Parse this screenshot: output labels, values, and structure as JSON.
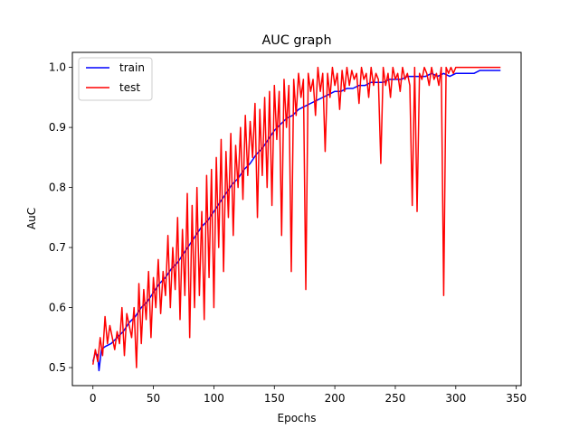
{
  "chart_data": {
    "type": "line",
    "title": "AUC graph",
    "xlabel": "Epochs",
    "ylabel": "AuC",
    "xlim": [
      -17,
      354
    ],
    "ylim": [
      0.47,
      1.025
    ],
    "xticks": [
      0,
      50,
      100,
      150,
      200,
      250,
      300,
      350
    ],
    "yticks": [
      0.5,
      0.6,
      0.7,
      0.8,
      0.9,
      1.0
    ],
    "xtick_labels": [
      "0",
      "50",
      "100",
      "150",
      "200",
      "250",
      "300",
      "350"
    ],
    "ytick_labels": [
      "0.5",
      "0.6",
      "0.7",
      "0.8",
      "0.9",
      "1.0"
    ],
    "grid": false,
    "legend_position": "top-left",
    "series": [
      {
        "name": "train",
        "color": "#0000ff",
        "x": [
          0,
          2,
          4,
          5,
          7,
          10,
          15,
          20,
          25,
          30,
          35,
          40,
          45,
          50,
          55,
          60,
          65,
          70,
          75,
          80,
          85,
          90,
          95,
          100,
          105,
          110,
          115,
          120,
          125,
          130,
          135,
          140,
          145,
          150,
          155,
          160,
          165,
          170,
          175,
          180,
          185,
          190,
          195,
          200,
          205,
          210,
          215,
          220,
          225,
          230,
          235,
          240,
          245,
          250,
          255,
          260,
          265,
          270,
          275,
          280,
          285,
          290,
          295,
          300,
          305,
          310,
          315,
          320,
          325,
          330,
          335,
          337
        ],
        "values": [
          0.51,
          0.525,
          0.52,
          0.495,
          0.53,
          0.535,
          0.54,
          0.55,
          0.56,
          0.575,
          0.585,
          0.6,
          0.61,
          0.625,
          0.64,
          0.65,
          0.665,
          0.675,
          0.69,
          0.705,
          0.72,
          0.735,
          0.745,
          0.76,
          0.775,
          0.79,
          0.805,
          0.815,
          0.83,
          0.84,
          0.855,
          0.865,
          0.88,
          0.895,
          0.905,
          0.915,
          0.92,
          0.93,
          0.935,
          0.94,
          0.945,
          0.95,
          0.955,
          0.96,
          0.96,
          0.965,
          0.965,
          0.97,
          0.97,
          0.975,
          0.975,
          0.975,
          0.98,
          0.98,
          0.98,
          0.985,
          0.985,
          0.985,
          0.985,
          0.99,
          0.985,
          0.99,
          0.985,
          0.99,
          0.99,
          0.99,
          0.99,
          0.995,
          0.995,
          0.995,
          0.995,
          0.995
        ]
      },
      {
        "name": "test",
        "color": "#ff0000",
        "x": [
          0,
          2,
          4,
          6,
          8,
          10,
          12,
          14,
          16,
          18,
          20,
          22,
          24,
          26,
          28,
          30,
          32,
          34,
          36,
          38,
          40,
          42,
          44,
          46,
          48,
          50,
          52,
          54,
          56,
          58,
          60,
          62,
          64,
          66,
          68,
          70,
          72,
          74,
          76,
          78,
          80,
          82,
          84,
          86,
          88,
          90,
          92,
          94,
          96,
          98,
          100,
          102,
          104,
          106,
          108,
          110,
          112,
          114,
          116,
          118,
          120,
          122,
          124,
          126,
          128,
          130,
          132,
          134,
          136,
          138,
          140,
          142,
          144,
          146,
          148,
          150,
          152,
          154,
          156,
          158,
          160,
          162,
          164,
          166,
          168,
          170,
          172,
          174,
          176,
          178,
          180,
          182,
          184,
          186,
          188,
          190,
          192,
          194,
          196,
          198,
          200,
          202,
          204,
          206,
          208,
          210,
          212,
          214,
          216,
          218,
          220,
          222,
          224,
          226,
          228,
          230,
          232,
          234,
          236,
          238,
          240,
          242,
          244,
          246,
          248,
          250,
          252,
          254,
          256,
          258,
          260,
          262,
          264,
          266,
          268,
          270,
          272,
          274,
          276,
          278,
          280,
          282,
          284,
          286,
          288,
          290,
          292,
          294,
          296,
          298,
          300,
          302,
          304,
          306,
          308,
          310,
          315,
          320,
          325,
          330,
          335,
          337
        ],
        "values": [
          0.505,
          0.53,
          0.51,
          0.55,
          0.52,
          0.585,
          0.54,
          0.57,
          0.55,
          0.53,
          0.56,
          0.54,
          0.6,
          0.52,
          0.59,
          0.57,
          0.55,
          0.6,
          0.5,
          0.64,
          0.54,
          0.63,
          0.58,
          0.66,
          0.55,
          0.65,
          0.6,
          0.68,
          0.59,
          0.66,
          0.62,
          0.72,
          0.6,
          0.7,
          0.63,
          0.75,
          0.58,
          0.73,
          0.62,
          0.79,
          0.55,
          0.77,
          0.6,
          0.8,
          0.62,
          0.76,
          0.58,
          0.82,
          0.65,
          0.83,
          0.6,
          0.85,
          0.7,
          0.88,
          0.66,
          0.86,
          0.75,
          0.89,
          0.72,
          0.87,
          0.8,
          0.9,
          0.78,
          0.92,
          0.82,
          0.91,
          0.85,
          0.94,
          0.75,
          0.93,
          0.82,
          0.95,
          0.8,
          0.96,
          0.77,
          0.97,
          0.88,
          0.96,
          0.72,
          0.98,
          0.9,
          0.97,
          0.66,
          0.98,
          0.92,
          0.99,
          0.95,
          0.98,
          0.63,
          0.99,
          0.96,
          0.98,
          0.92,
          1.0,
          0.96,
          0.99,
          0.86,
          0.99,
          0.95,
          1.0,
          0.97,
          0.99,
          0.93,
          0.995,
          0.96,
          1.0,
          0.97,
          0.995,
          0.98,
          0.99,
          0.94,
          1.0,
          0.98,
          0.99,
          0.95,
          1.0,
          0.97,
          0.99,
          0.98,
          0.84,
          1.0,
          0.97,
          0.99,
          0.95,
          1.0,
          0.98,
          0.99,
          0.96,
          1.0,
          0.98,
          0.99,
          0.97,
          0.77,
          1.0,
          0.76,
          0.99,
          0.98,
          1.0,
          0.99,
          0.97,
          1.0,
          0.98,
          0.99,
          0.97,
          1.0,
          0.62,
          1.0,
          0.99,
          1.0,
          0.99,
          1.0,
          1.0,
          1.0,
          1.0,
          1.0,
          1.0,
          1.0,
          1.0,
          1.0,
          1.0,
          1.0,
          1.0
        ]
      }
    ]
  }
}
